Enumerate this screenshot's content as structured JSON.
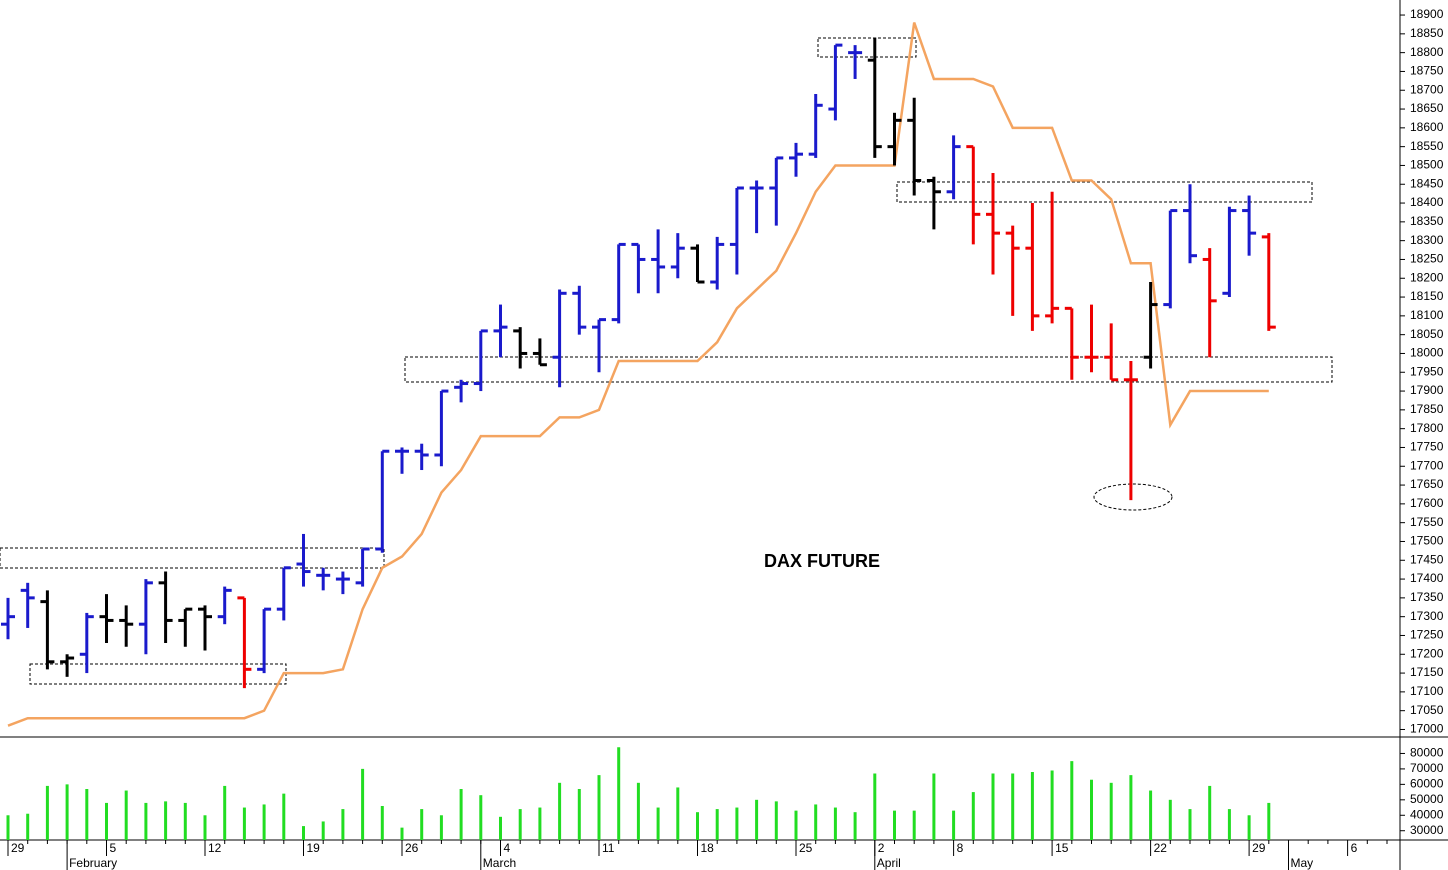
{
  "chart_data": {
    "type": "ohlc",
    "title": "DAX FUTURE",
    "categories": [
      "29",
      null,
      null,
      null,
      null,
      "5",
      null,
      null,
      null,
      null,
      "12",
      null,
      null,
      null,
      null,
      "19",
      null,
      null,
      null,
      null,
      "26",
      null,
      null,
      null,
      null,
      "4",
      null,
      null,
      null,
      null,
      "11",
      null,
      null,
      null,
      null,
      "18",
      null,
      null,
      null,
      null,
      "25",
      null,
      null,
      null,
      "2",
      null,
      null,
      null,
      "8",
      null,
      null,
      null,
      null,
      "15",
      null,
      null,
      null,
      null,
      "22",
      null,
      null,
      null,
      null,
      "29",
      null,
      null,
      null,
      null,
      "6",
      null,
      null
    ],
    "months": [
      null,
      null,
      null,
      "February",
      null,
      null,
      null,
      null,
      null,
      null,
      null,
      null,
      null,
      null,
      null,
      null,
      null,
      null,
      null,
      null,
      null,
      null,
      null,
      null,
      "March",
      null,
      null,
      null,
      null,
      null,
      null,
      null,
      null,
      null,
      null,
      null,
      null,
      null,
      null,
      null,
      null,
      null,
      null,
      null,
      "April",
      null,
      null,
      null,
      null,
      null,
      null,
      null,
      null,
      null,
      null,
      null,
      null,
      null,
      null,
      null,
      null,
      null,
      null,
      null,
      null,
      "May",
      null,
      null,
      null,
      null,
      null
    ],
    "open": [
      17280,
      17370,
      17340,
      17180,
      17200,
      17300,
      17290,
      17280,
      17390,
      17290,
      17320,
      17300,
      17350,
      17160,
      17320,
      17440,
      17410,
      17400,
      17390,
      17480,
      17740,
      17740,
      17730,
      17910,
      17920,
      18060,
      18060,
      18000,
      17990,
      18160,
      18070,
      18090,
      18290,
      18250,
      18230,
      18280,
      18190,
      18290,
      18440,
      18440,
      18520,
      18530,
      18650,
      18800,
      18780,
      18550,
      18620,
      18460,
      18430,
      18550,
      18370,
      18320,
      18280,
      18100,
      18120,
      17990,
      17990,
      17930,
      17990,
      18130,
      18380,
      18250,
      18160,
      18380,
      18310,
      null,
      null,
      null,
      null,
      null,
      null
    ],
    "high": [
      17350,
      17390,
      17370,
      17200,
      17310,
      17360,
      17330,
      17400,
      17420,
      17320,
      17330,
      17380,
      17350,
      17320,
      17430,
      17520,
      17430,
      17420,
      17480,
      17740,
      17750,
      17760,
      17900,
      17930,
      18060,
      18130,
      18070,
      18040,
      18170,
      18180,
      18090,
      18290,
      18290,
      18330,
      18320,
      18290,
      18310,
      18440,
      18460,
      18520,
      18560,
      18690,
      18820,
      18820,
      18840,
      18640,
      18680,
      18470,
      18580,
      18550,
      18480,
      18340,
      18400,
      18430,
      18120,
      18130,
      18080,
      17980,
      18190,
      18380,
      18450,
      18280,
      18390,
      18420,
      18320,
      null,
      null,
      null,
      null,
      null,
      null
    ],
    "low": [
      17240,
      17270,
      17160,
      17140,
      17150,
      17230,
      17220,
      17200,
      17230,
      17220,
      17210,
      17280,
      17110,
      17150,
      17290,
      17380,
      17370,
      17360,
      17380,
      17470,
      17680,
      17690,
      17700,
      17870,
      17900,
      17990,
      17960,
      17970,
      17910,
      18050,
      17950,
      18080,
      18160,
      18160,
      18200,
      18190,
      18170,
      18210,
      18320,
      18340,
      18470,
      18520,
      18620,
      18730,
      18520,
      18500,
      18420,
      18330,
      18410,
      18290,
      18210,
      18100,
      18060,
      18080,
      17930,
      17950,
      17930,
      17610,
      17960,
      18120,
      18240,
      17990,
      18150,
      18260,
      18060,
      null,
      null,
      null,
      null,
      null,
      null
    ],
    "close": [
      17300,
      17350,
      17180,
      17190,
      17300,
      17290,
      17280,
      17390,
      17290,
      17320,
      17300,
      17370,
      17160,
      17320,
      17430,
      17420,
      17410,
      17400,
      17480,
      17740,
      17740,
      17730,
      17900,
      17920,
      18060,
      18070,
      18000,
      17970,
      18160,
      18070,
      18090,
      18290,
      18250,
      18230,
      18280,
      18190,
      18290,
      18440,
      18440,
      18520,
      18530,
      18660,
      18820,
      18800,
      18550,
      18620,
      18460,
      18430,
      18550,
      18370,
      18320,
      18280,
      18100,
      18120,
      17990,
      17990,
      17930,
      17930,
      18130,
      18380,
      18260,
      18140,
      18380,
      18320,
      18070,
      null,
      null,
      null,
      null,
      null,
      null
    ],
    "colors": [
      "#1a1acc",
      "#1a1acc",
      "#000000",
      "#000000",
      "#1a1acc",
      "#000000",
      "#000000",
      "#1a1acc",
      "#000000",
      "#000000",
      "#000000",
      "#1a1acc",
      "#ee0000",
      "#1a1acc",
      "#1a1acc",
      "#1a1acc",
      "#1a1acc",
      "#1a1acc",
      "#1a1acc",
      "#1a1acc",
      "#1a1acc",
      "#1a1acc",
      "#1a1acc",
      "#1a1acc",
      "#1a1acc",
      "#1a1acc",
      "#000000",
      "#000000",
      "#1a1acc",
      "#1a1acc",
      "#1a1acc",
      "#1a1acc",
      "#1a1acc",
      "#1a1acc",
      "#1a1acc",
      "#000000",
      "#1a1acc",
      "#1a1acc",
      "#1a1acc",
      "#1a1acc",
      "#1a1acc",
      "#1a1acc",
      "#1a1acc",
      "#1a1acc",
      "#000000",
      "#000000",
      "#000000",
      "#000000",
      "#1a1acc",
      "#ee0000",
      "#ee0000",
      "#ee0000",
      "#ee0000",
      "#ee0000",
      "#ee0000",
      "#ee0000",
      "#ee0000",
      "#ee0000",
      "#000000",
      "#1a1acc",
      "#1a1acc",
      "#ee0000",
      "#1a1acc",
      "#1a1acc",
      "#ee0000",
      null,
      null,
      null,
      null,
      null,
      null
    ],
    "stop": {
      "color": "#f4a460",
      "values": [
        17010,
        17030,
        17030,
        17030,
        17030,
        17030,
        17030,
        17030,
        17030,
        17030,
        17030,
        17030,
        17030,
        17050,
        17150,
        17150,
        17150,
        17160,
        17320,
        17430,
        17460,
        17520,
        17630,
        17690,
        17780,
        17780,
        17780,
        17780,
        17830,
        17830,
        17850,
        17980,
        17980,
        17980,
        17980,
        17980,
        18030,
        18120,
        18170,
        18220,
        18320,
        18430,
        18500,
        18500,
        18500,
        18500,
        18880,
        18730,
        18730,
        18730,
        18710,
        18600,
        18600,
        18600,
        18460,
        18460,
        18410,
        18240,
        18240,
        17810,
        17900,
        17900,
        17900,
        17900,
        17900,
        null,
        null,
        null,
        null,
        null,
        null
      ]
    },
    "ylim": [
      16980,
      18940
    ],
    "yticks": [
      17000,
      17050,
      17100,
      17150,
      17200,
      17250,
      17300,
      17350,
      17400,
      17450,
      17500,
      17550,
      17600,
      17650,
      17700,
      17750,
      17800,
      17850,
      17900,
      17950,
      18000,
      18050,
      18100,
      18150,
      18200,
      18250,
      18300,
      18350,
      18400,
      18450,
      18500,
      18550,
      18600,
      18650,
      18700,
      18750,
      18800,
      18850,
      18900
    ],
    "volume": {
      "color": "#22dd22",
      "values": [
        40000,
        41000,
        59000,
        60000,
        57000,
        48000,
        56000,
        48000,
        49000,
        48000,
        40000,
        59000,
        45000,
        47000,
        54000,
        33000,
        36000,
        44000,
        70000,
        46000,
        32000,
        44000,
        40000,
        57000,
        53000,
        39000,
        44000,
        45000,
        61000,
        57000,
        66000,
        84000,
        61000,
        45000,
        58000,
        42000,
        44000,
        45000,
        50000,
        49000,
        43000,
        47000,
        45000,
        42000,
        67000,
        43000,
        43000,
        67000,
        43000,
        55000,
        67000,
        67000,
        68000,
        69000,
        75000,
        63000,
        61000,
        66000,
        56000,
        50000,
        44000,
        59000,
        44000,
        40000,
        48000,
        null,
        null,
        null,
        null,
        null,
        null
      ],
      "ylim": [
        24000,
        90000
      ],
      "yticks": [
        30000,
        40000,
        50000,
        60000,
        70000,
        80000
      ]
    }
  }
}
